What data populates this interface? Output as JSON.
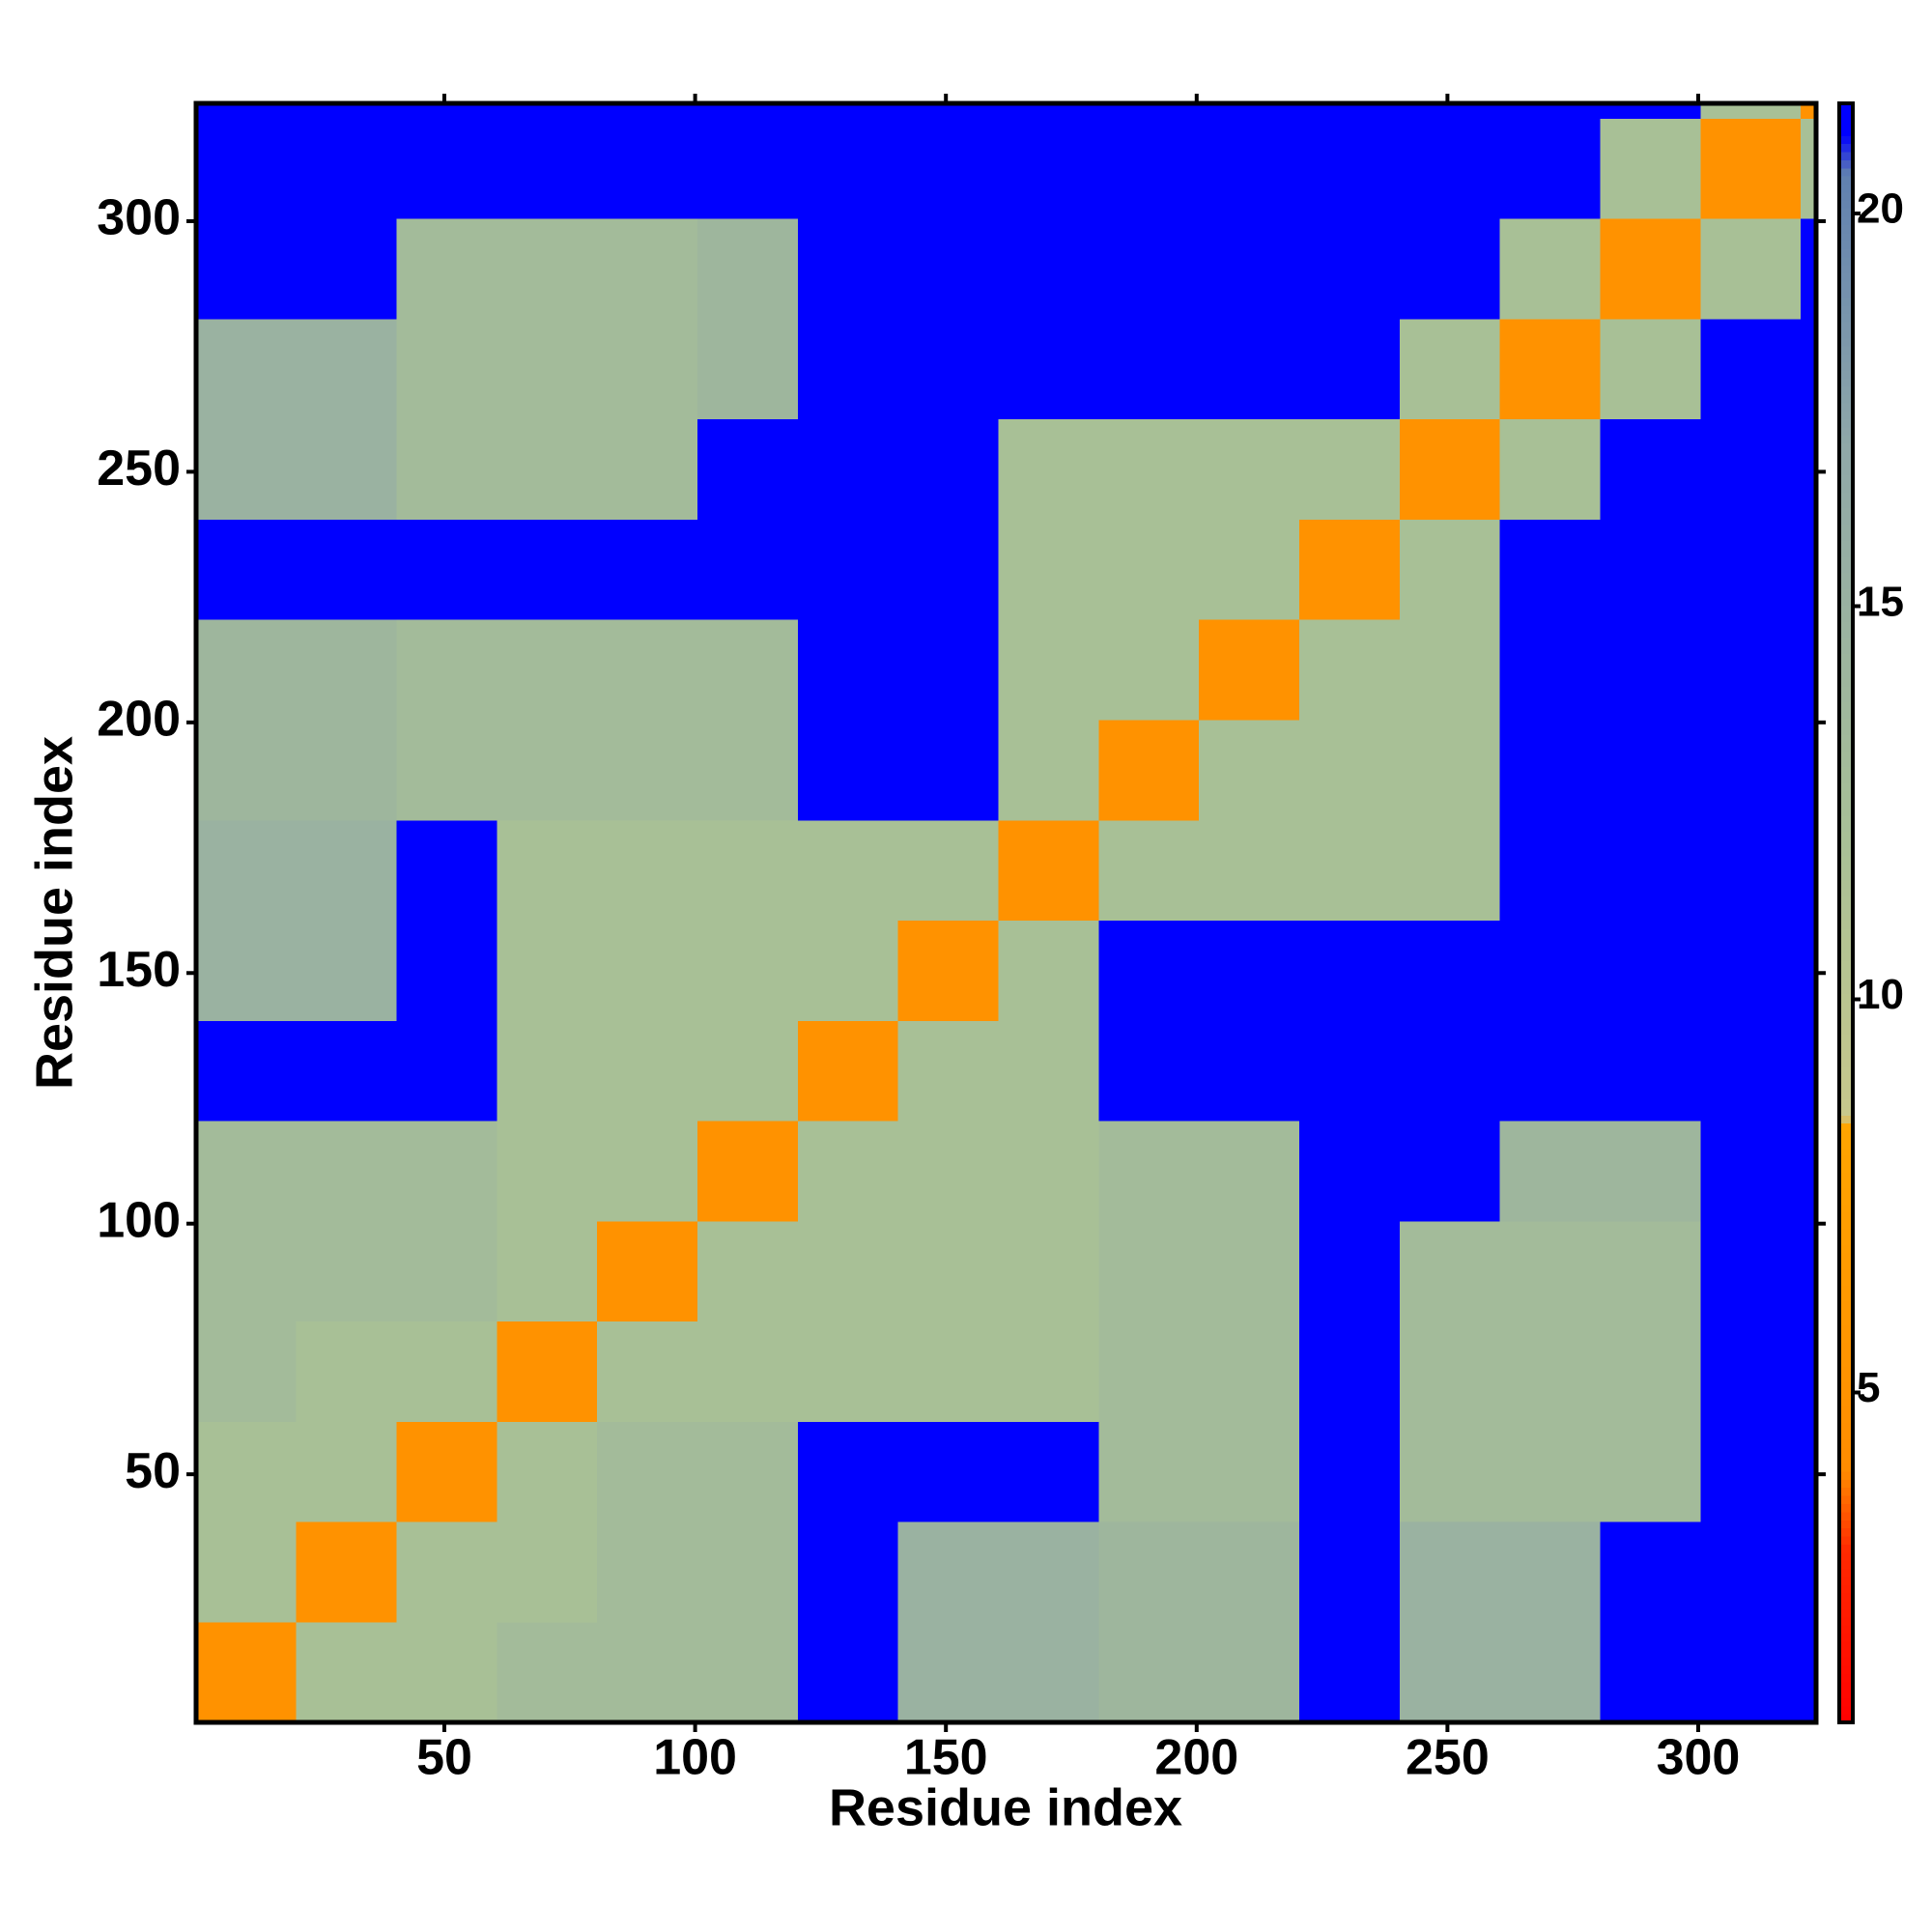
{
  "chart_data": {
    "type": "heatmap",
    "x_label": "Residue index",
    "y_label": "Residue index",
    "bins": [
      0.5,
      20.5,
      40.5,
      60.5,
      80.5,
      100.5,
      120.5,
      140.5,
      160.5,
      180.5,
      200.5,
      220.5,
      240.5,
      260.5,
      280.5,
      300.5,
      320.5,
      323.5
    ],
    "xlim": [
      0.5,
      323.5
    ],
    "ylim": [
      0.5,
      323.5
    ],
    "xticks": [
      50,
      100,
      150,
      200,
      250,
      300
    ],
    "yticks": [
      50,
      100,
      150,
      200,
      250,
      300
    ],
    "values": [
      [
        5,
        12,
        12,
        13,
        13,
        13,
        21,
        15,
        15,
        14,
        14,
        21,
        15,
        15,
        21,
        21,
        21
      ],
      [
        12,
        5,
        12,
        12,
        13,
        13,
        21,
        15,
        15,
        14,
        14,
        21,
        15,
        15,
        21,
        21,
        21
      ],
      [
        12,
        12,
        5,
        12,
        13,
        13,
        21,
        21,
        21,
        13,
        13,
        21,
        13,
        13,
        13,
        21,
        21
      ],
      [
        13,
        12,
        12,
        5,
        12,
        12,
        12,
        12,
        12,
        13,
        13,
        21,
        13,
        13,
        13,
        21,
        21
      ],
      [
        13,
        13,
        13,
        12,
        5,
        12,
        12,
        12,
        12,
        13,
        13,
        21,
        13,
        13,
        13,
        21,
        21
      ],
      [
        13,
        13,
        13,
        12,
        12,
        5,
        12,
        12,
        12,
        13,
        13,
        21,
        21,
        14,
        14,
        21,
        21
      ],
      [
        21,
        21,
        21,
        12,
        12,
        12,
        5,
        12,
        12,
        21,
        21,
        21,
        21,
        21,
        21,
        21,
        21
      ],
      [
        15,
        15,
        21,
        12,
        12,
        12,
        12,
        5,
        12,
        21,
        21,
        21,
        21,
        21,
        21,
        21,
        21
      ],
      [
        15,
        15,
        21,
        12,
        12,
        12,
        12,
        12,
        5,
        12,
        12,
        12,
        12,
        21,
        21,
        21,
        21
      ],
      [
        14,
        14,
        13,
        13,
        13,
        13,
        21,
        21,
        12,
        5,
        12,
        12,
        12,
        21,
        21,
        21,
        21
      ],
      [
        14,
        14,
        13,
        13,
        13,
        13,
        21,
        21,
        12,
        12,
        5,
        12,
        12,
        21,
        21,
        21,
        21
      ],
      [
        21,
        21,
        21,
        21,
        21,
        21,
        21,
        21,
        12,
        12,
        12,
        5,
        12,
        21,
        21,
        21,
        21
      ],
      [
        15,
        15,
        13,
        13,
        13,
        21,
        21,
        21,
        12,
        12,
        12,
        12,
        5,
        12,
        21,
        21,
        21
      ],
      [
        15,
        15,
        13,
        13,
        13,
        14,
        21,
        21,
        21,
        21,
        21,
        21,
        12,
        5,
        12,
        21,
        21
      ],
      [
        21,
        21,
        13,
        13,
        13,
        14,
        21,
        21,
        21,
        21,
        21,
        21,
        21,
        12,
        5,
        12,
        21
      ],
      [
        21,
        21,
        21,
        21,
        21,
        21,
        21,
        21,
        21,
        21,
        21,
        21,
        21,
        21,
        12,
        5,
        12
      ],
      [
        21,
        21,
        21,
        21,
        21,
        21,
        21,
        21,
        21,
        21,
        21,
        21,
        21,
        21,
        21,
        12,
        5
      ]
    ],
    "colorscale": [
      [
        0.8,
        "#ff0000"
      ],
      [
        3,
        "#ff2a00"
      ],
      [
        4,
        "#ff8c00"
      ],
      [
        8.4,
        "#ffa500"
      ],
      [
        8.5,
        "#c8c88c"
      ],
      [
        12,
        "#a8c096"
      ],
      [
        17,
        "#90a8a8"
      ],
      [
        20.5,
        "#6080b0"
      ],
      [
        21,
        "#0000ff"
      ],
      [
        21.4,
        "#0000ff"
      ]
    ],
    "clim": [
      0.8,
      21.4
    ],
    "cticks": [
      5,
      10,
      15,
      20
    ]
  }
}
